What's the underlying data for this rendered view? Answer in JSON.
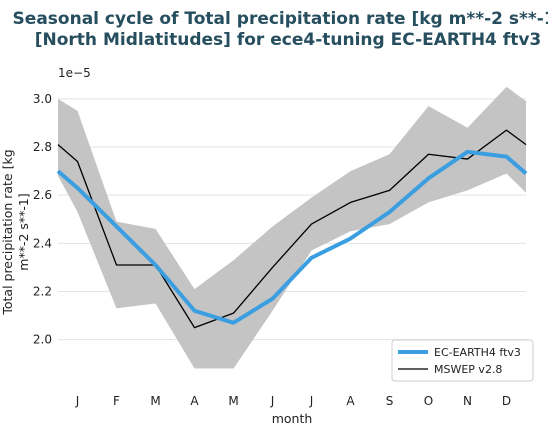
{
  "chart_data": {
    "type": "line",
    "title_line1": "Seasonal cycle of Total precipitation rate [kg m**-2 s**-1]",
    "title_line2": "[North Midlatitudes] for ece4-tuning EC-EARTH4 ftv3",
    "offset_label": "1e−5",
    "xlabel": "month",
    "ylabel_line1": "Total precipitation rate [kg",
    "ylabel_line2": "m**-2 s**-1]",
    "categories": [
      "J",
      "F",
      "M",
      "A",
      "M",
      "J",
      "J",
      "A",
      "S",
      "O",
      "N",
      "D"
    ],
    "x_range": [
      0.5,
      12.5
    ],
    "ylim": [
      1.82,
      3.07
    ],
    "yticks": [
      2.0,
      2.2,
      2.4,
      2.6,
      2.8,
      3.0
    ],
    "ytick_labels": [
      "2.0",
      "2.2",
      "2.4",
      "2.6",
      "2.8",
      "3.0"
    ],
    "grid": "horizontal",
    "legend_position": "bottom-right",
    "series": [
      {
        "name": "EC-EARTH4 ftv3",
        "color": "#3b9ee0",
        "x": [
          0.5,
          1,
          2,
          3,
          4,
          5,
          6,
          7,
          8,
          9,
          10,
          11,
          12,
          12.5
        ],
        "values": [
          2.7,
          2.63,
          2.47,
          2.31,
          2.12,
          2.07,
          2.17,
          2.34,
          2.42,
          2.53,
          2.67,
          2.78,
          2.76,
          2.69
        ]
      },
      {
        "name": "MSWEP v2.8",
        "color": "#000000",
        "x": [
          0.5,
          1,
          2,
          3,
          4,
          5,
          6,
          7,
          8,
          9,
          10,
          11,
          12,
          12.5
        ],
        "values": [
          2.81,
          2.74,
          2.31,
          2.31,
          2.05,
          2.11,
          2.3,
          2.48,
          2.57,
          2.62,
          2.77,
          2.75,
          2.87,
          2.81
        ],
        "band": {
          "color": "#c4c4c4",
          "upper": [
            3.0,
            2.95,
            2.49,
            2.46,
            2.21,
            2.33,
            2.47,
            2.59,
            2.7,
            2.77,
            2.97,
            2.88,
            3.05,
            2.99
          ],
          "lower": [
            2.68,
            2.53,
            2.13,
            2.15,
            1.88,
            1.88,
            2.12,
            2.37,
            2.45,
            2.48,
            2.57,
            2.62,
            2.69,
            2.61
          ]
        }
      }
    ]
  }
}
